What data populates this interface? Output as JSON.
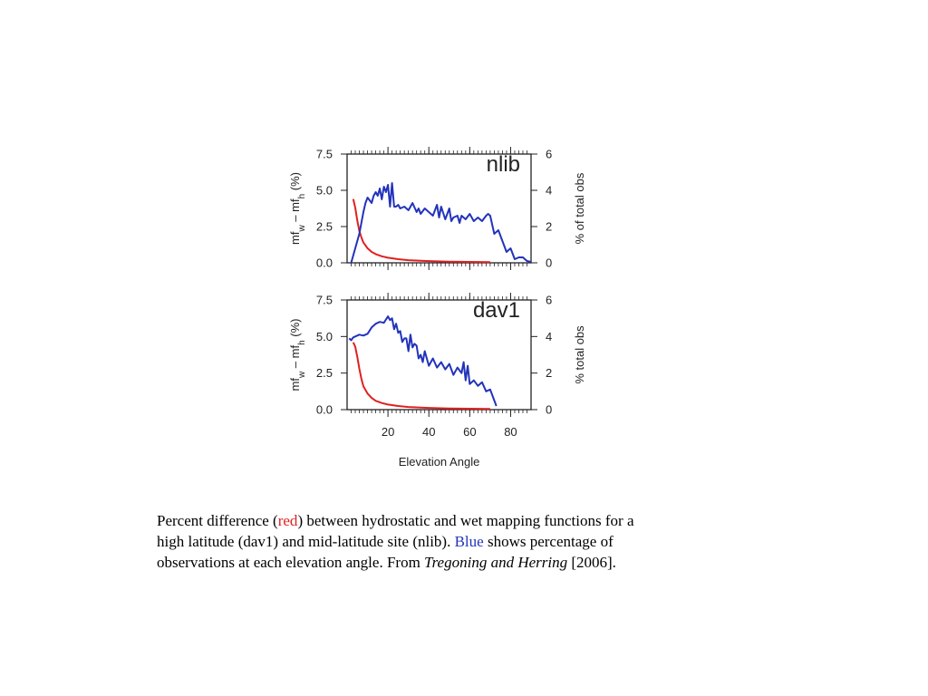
{
  "chart_data": [
    {
      "type": "line",
      "panel_label": "nlib",
      "xlim": [
        0,
        90
      ],
      "xticks": [
        20,
        40,
        60,
        80
      ],
      "xtick_labels": [
        "20",
        "40",
        "60",
        "80"
      ],
      "show_xtick_labels": false,
      "ylabel_left": [
        "mf",
        "w",
        " – mf",
        "h",
        " (%)"
      ],
      "ylabel_right": "% of total obs",
      "ylim_left": [
        0,
        7.5
      ],
      "yticks_left": [
        "0.0",
        "2.5",
        "5.0",
        "7.5"
      ],
      "ylim_right": [
        0,
        6
      ],
      "yticks_right": [
        "0",
        "2",
        "4",
        "6"
      ],
      "series": [
        {
          "axis": "left",
          "color": "#e02020",
          "x": [
            3,
            4,
            5,
            6,
            7,
            8,
            10,
            12,
            14,
            17,
            20,
            25,
            30,
            40,
            50,
            60,
            70
          ],
          "y": [
            4.4,
            3.8,
            2.9,
            2.2,
            1.75,
            1.4,
            1.0,
            0.75,
            0.6,
            0.45,
            0.35,
            0.25,
            0.18,
            0.12,
            0.08,
            0.06,
            0.05
          ]
        },
        {
          "axis": "right",
          "color": "#2233bb",
          "x": [
            2,
            4,
            6,
            8,
            9,
            10,
            12,
            13,
            14,
            15,
            16,
            17,
            18,
            19,
            20,
            21,
            22,
            23,
            24,
            25,
            26,
            28,
            30,
            32,
            34,
            35,
            36,
            38,
            40,
            42,
            44,
            45,
            46,
            48,
            50,
            51,
            52,
            54,
            55,
            56,
            58,
            60,
            62,
            64,
            66,
            68,
            69,
            70,
            72,
            74,
            76,
            78,
            80,
            82,
            84,
            86,
            88,
            90
          ],
          "y": [
            0,
            0.8,
            1.6,
            2.8,
            3.3,
            3.6,
            3.3,
            3.7,
            3.9,
            3.7,
            4.1,
            3.5,
            4.2,
            3.9,
            4.3,
            3.1,
            4.4,
            3.1,
            3.1,
            3.2,
            3.0,
            3.1,
            2.9,
            3.3,
            2.8,
            3.0,
            2.7,
            3.0,
            2.8,
            2.6,
            3.2,
            2.5,
            3.1,
            2.4,
            3.0,
            2.3,
            2.5,
            2.6,
            2.2,
            2.6,
            2.4,
            2.7,
            2.3,
            2.5,
            2.3,
            2.6,
            2.7,
            2.6,
            1.6,
            1.8,
            1.2,
            0.6,
            0.8,
            0.2,
            0.3,
            0.3,
            0.1,
            0.05
          ]
        }
      ]
    },
    {
      "type": "line",
      "panel_label": "dav1",
      "xlim": [
        0,
        90
      ],
      "xticks": [
        20,
        40,
        60,
        80
      ],
      "xtick_labels": [
        "20",
        "40",
        "60",
        "80"
      ],
      "show_xtick_labels": true,
      "xlabel": "Elevation Angle",
      "ylabel_left": [
        "mf",
        "w",
        " – mf",
        "h",
        " (%)"
      ],
      "ylabel_right": "% total obs",
      "ylim_left": [
        0,
        7.5
      ],
      "yticks_left": [
        "0.0",
        "2.5",
        "5.0",
        "7.5"
      ],
      "ylim_right": [
        0,
        6
      ],
      "yticks_right": [
        "0",
        "2",
        "4",
        "6"
      ],
      "series": [
        {
          "axis": "left",
          "color": "#e02020",
          "x": [
            3,
            4,
            5,
            6,
            7,
            8,
            10,
            12,
            14,
            17,
            20,
            25,
            30,
            40,
            50,
            60,
            70
          ],
          "y": [
            4.6,
            4.3,
            3.6,
            2.8,
            2.1,
            1.6,
            1.1,
            0.8,
            0.6,
            0.45,
            0.35,
            0.25,
            0.18,
            0.12,
            0.08,
            0.06,
            0.05
          ]
        },
        {
          "axis": "right",
          "color": "#2233bb",
          "x": [
            1,
            2,
            3,
            4,
            6,
            8,
            10,
            12,
            14,
            16,
            18,
            20,
            21,
            22,
            23,
            24,
            25,
            26,
            27,
            28,
            29,
            30,
            31,
            32,
            33,
            34,
            35,
            36,
            37,
            38,
            40,
            42,
            44,
            46,
            48,
            50,
            52,
            54,
            56,
            57,
            58,
            59,
            60,
            62,
            64,
            66,
            68,
            70,
            72,
            73
          ],
          "y": [
            3.9,
            3.8,
            3.95,
            4.0,
            4.1,
            4.05,
            4.15,
            4.5,
            4.7,
            4.8,
            4.75,
            5.1,
            4.9,
            5.0,
            4.4,
            4.7,
            4.2,
            4.3,
            3.7,
            3.9,
            3.9,
            3.2,
            4.1,
            3.4,
            3.6,
            3.5,
            2.8,
            3.0,
            2.6,
            3.2,
            2.4,
            2.8,
            2.3,
            2.6,
            2.2,
            2.5,
            1.9,
            2.3,
            2.0,
            2.6,
            1.6,
            2.4,
            1.4,
            1.6,
            1.3,
            1.5,
            1.0,
            1.1,
            0.5,
            0.2
          ]
        }
      ]
    }
  ],
  "caption": {
    "line1_a": "Percent difference (",
    "line1_red": "red",
    "line1_b": ") between hydrostatic and wet mapping functions for a",
    "line2_a": "high latitude (dav1) and mid-latitude site (nlib).  ",
    "line2_blue": "Blue",
    "line2_b": " shows percentage of",
    "line3_a": "observations at each elevation angle.  From ",
    "line3_italic": "Tregoning and Herring",
    "line3_b": " [2006]."
  }
}
